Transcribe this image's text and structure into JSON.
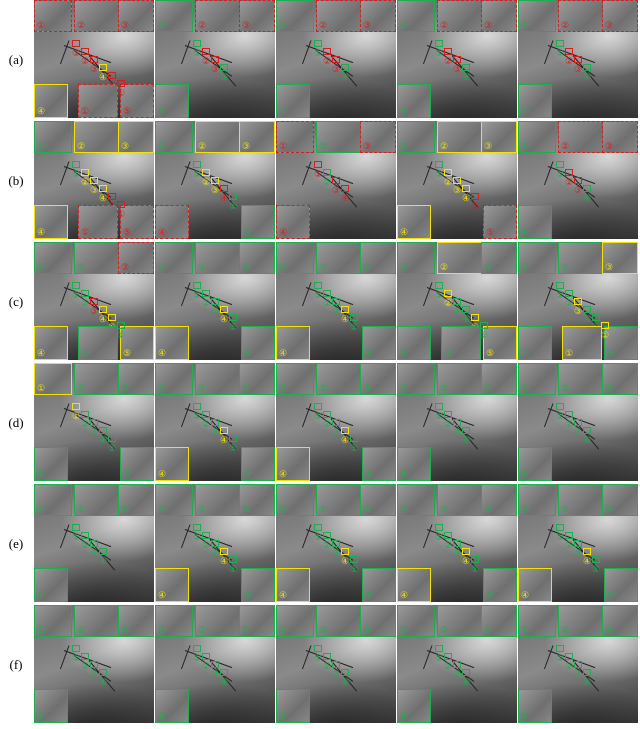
{
  "row_labels": [
    "(a)",
    "(b)",
    "(c)",
    "(d)",
    "(e)",
    "(f)"
  ],
  "colors": {
    "r": "#d21f1f",
    "g": "#1fae4f",
    "y": "#f2e205"
  },
  "grid": [
    [
      "rrryrr",
      "grrg",
      "grrg",
      "grrg",
      "grrg"
    ],
    [
      "gyyyrr",
      "gyyrg",
      "rgrr",
      "gyyyr",
      "grrg"
    ],
    [
      "ggryyg",
      "gggyg",
      "gggyg",
      "gyggyg",
      "ggyggy"
    ],
    [
      "ygggg",
      "gggyg",
      "gggyg",
      "gggg",
      "gggg"
    ],
    [
      "gggg",
      "gggyg",
      "gggyg",
      "gggyg",
      "gggyg"
    ],
    [
      "gggg",
      "gggg",
      "gggg",
      "gggg",
      "gggg"
    ]
  ],
  "numbers": [
    "①",
    "②",
    "③",
    "④",
    "⑤"
  ]
}
